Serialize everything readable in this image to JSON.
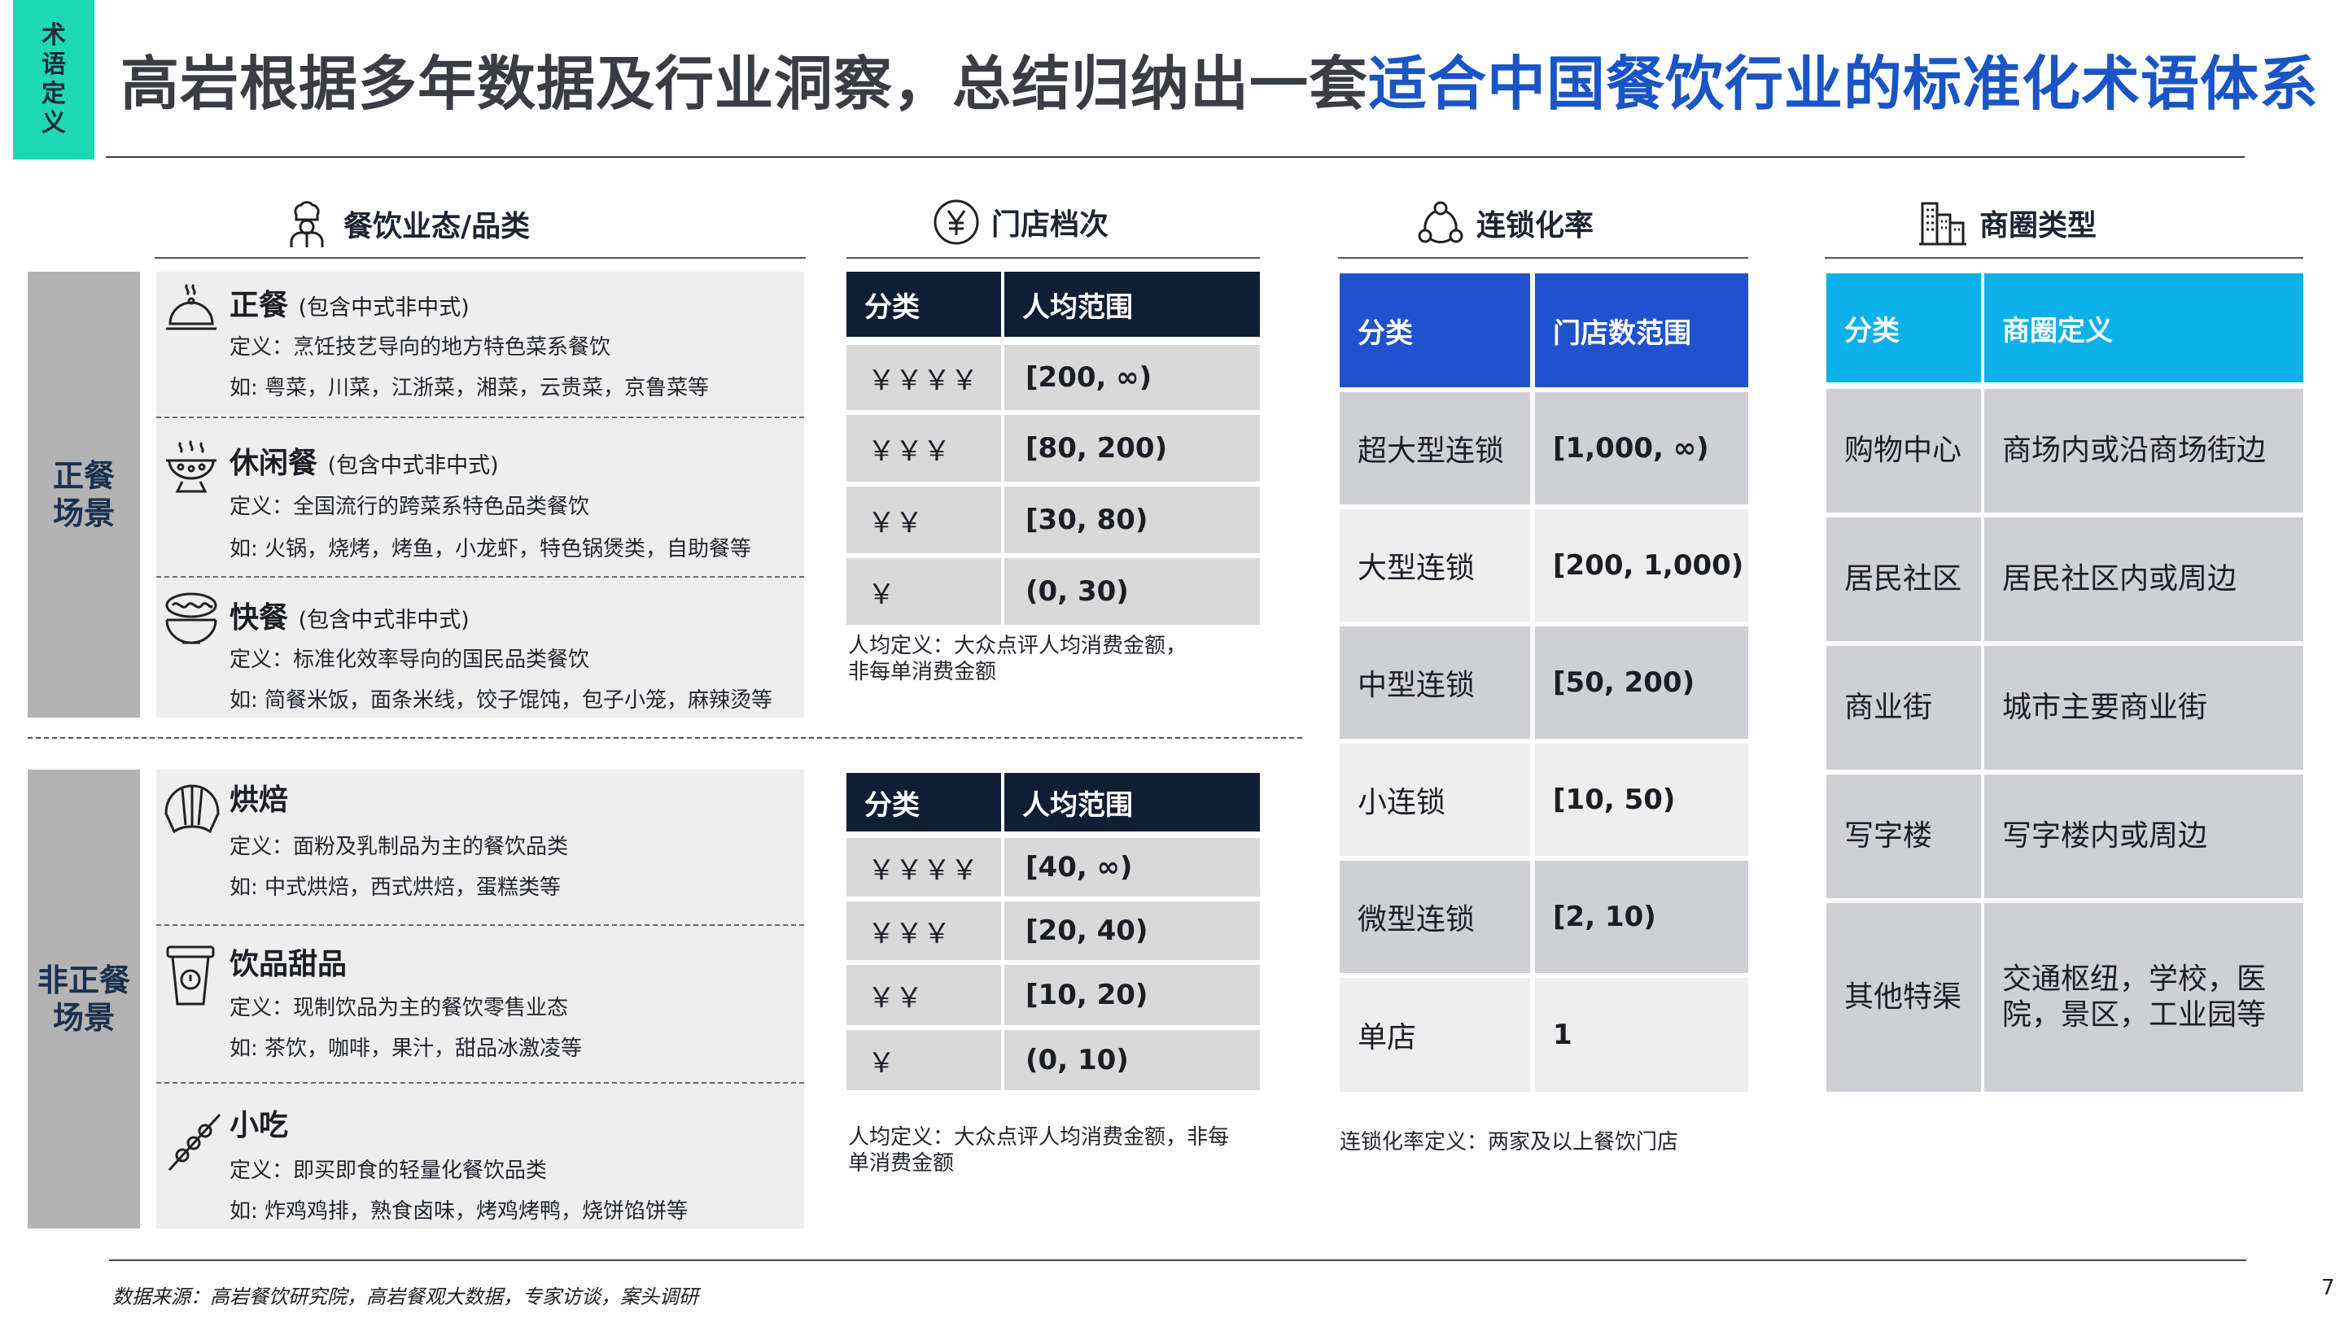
{
  "tag": [
    "术",
    "语",
    "定",
    "义"
  ],
  "title": {
    "main": "高岩根据多年数据及行业洞察，总结归纳出一套",
    "highlight": "适合中国餐饮行业的标准化术语体系"
  },
  "sections": {
    "category": {
      "label": "餐饮业态/品类",
      "icon": "chef-icon"
    },
    "price": {
      "label": "门店档次",
      "icon": "yen-circle-icon"
    },
    "chain": {
      "label": "连锁化率",
      "icon": "network-icon"
    },
    "district": {
      "label": "商圈类型",
      "icon": "buildings-icon"
    }
  },
  "scenarios": {
    "formal": "正餐\n场景",
    "informal": "非正餐\n场景"
  },
  "categories_formal": [
    {
      "name": "正餐",
      "note": "(包含中式非中式)",
      "def": "定义：烹饪技艺导向的地方特色菜系餐饮",
      "ex": "如: 粤菜，川菜，江浙菜，湘菜，云贵菜，京鲁菜等",
      "icon": "cloche-icon"
    },
    {
      "name": "休闲餐",
      "note": "(包含中式非中式)",
      "def": "定义：全国流行的跨菜系特色品类餐饮",
      "ex": "如: 火锅，烧烤，烤鱼，小龙虾，特色锅煲类，自助餐等",
      "icon": "hotpot-icon"
    },
    {
      "name": "快餐",
      "note": "(包含中式非中式)",
      "def": "定义：标准化效率导向的国民品类餐饮",
      "ex": "如: 简餐米饭，面条米线，饺子馄饨，包子小笼，麻辣烫等",
      "icon": "noodle-bowl-icon"
    }
  ],
  "categories_informal": [
    {
      "name": "烘焙",
      "note": "",
      "def": "定义：面粉及乳制品为主的餐饮品类",
      "ex": "如: 中式烘焙，西式烘焙，蛋糕类等",
      "icon": "croissant-icon"
    },
    {
      "name": "饮品甜品",
      "note": "",
      "def": "定义：现制饮品为主的餐饮零售业态",
      "ex": "如: 茶饮，咖啡，果汁，甜品冰激凌等",
      "icon": "drink-cup-icon"
    },
    {
      "name": "小吃",
      "note": "",
      "def": "定义：即买即食的轻量化餐饮品类",
      "ex": "如: 炸鸡鸡排，熟食卤味，烤鸡烤鸭，烧饼馅饼等",
      "icon": "skewer-icon"
    }
  ],
  "price_formal": {
    "headers": [
      "分类",
      "人均范围"
    ],
    "rows": [
      [
        "￥￥￥￥",
        "[200, ∞)"
      ],
      [
        "￥￥￥",
        "[80, 200)"
      ],
      [
        "￥￥",
        "[30, 80)"
      ],
      [
        "￥",
        "(0, 30)"
      ]
    ],
    "note": "人均定义：大众点评人均消费金额，\n非每单消费金额"
  },
  "price_informal": {
    "headers": [
      "分类",
      "人均范围"
    ],
    "rows": [
      [
        "￥￥￥￥",
        "[40, ∞)"
      ],
      [
        "￥￥￥",
        "[20, 40)"
      ],
      [
        "￥￥",
        "[10, 20)"
      ],
      [
        "￥",
        "(0, 10)"
      ]
    ],
    "note": "人均定义：大众点评人均消费金额，非每\n单消费金额"
  },
  "chain": {
    "headers": [
      "分类",
      "门店数范围"
    ],
    "rows": [
      [
        "超大型连锁",
        "[1,000, ∞)"
      ],
      [
        "大型连锁",
        "[200, 1,000)"
      ],
      [
        "中型连锁",
        "[50, 200)"
      ],
      [
        "小连锁",
        "[10, 50)"
      ],
      [
        "微型连锁",
        "[2, 10)"
      ],
      [
        "单店",
        "1"
      ]
    ],
    "note": "连锁化率定义：两家及以上餐饮门店"
  },
  "district": {
    "headers": [
      "分类",
      "商圈定义"
    ],
    "rows": [
      [
        "购物中心",
        "商场内或沿商场街边"
      ],
      [
        "居民社区",
        "居民社区内或周边"
      ],
      [
        "商业街",
        "城市主要商业街"
      ],
      [
        "写字楼",
        "写字楼内或周边"
      ],
      [
        "其他特渠",
        "交通枢纽，学校，医\n院，景区，工业园等"
      ]
    ]
  },
  "footer": "数据来源：高岩餐饮研究院，高岩餐观大数据，专家访谈，案头调研",
  "page_number": "7"
}
